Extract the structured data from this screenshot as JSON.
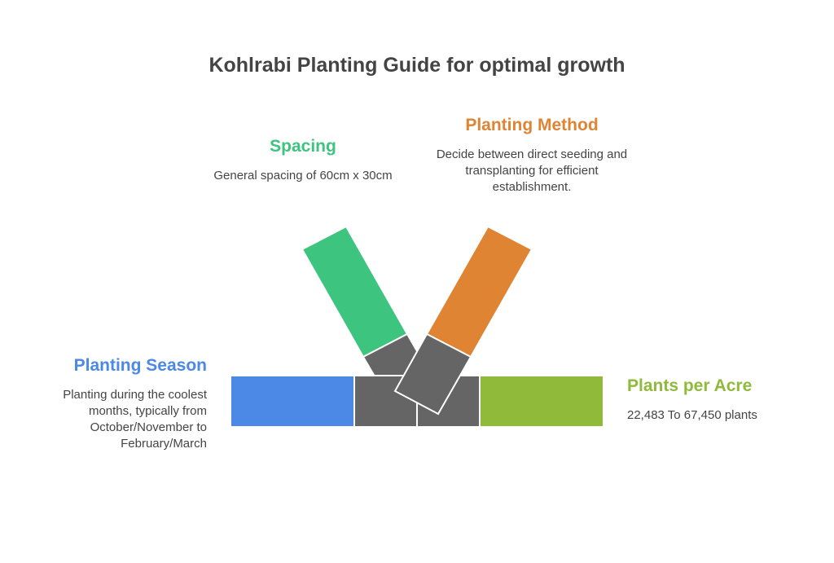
{
  "title": "Kohlrabi Planting Guide for optimal growth",
  "colors": {
    "spacing": "#3dc47e",
    "method": "#de8432",
    "season": "#4c88e5",
    "acre": "#8fba3a",
    "connector": "#656565"
  },
  "items": {
    "spacing": {
      "title": "Spacing",
      "description": "General spacing of 60cm x 30cm"
    },
    "method": {
      "title": "Planting Method",
      "description": "Decide between direct seeding and transplanting for efficient establishment."
    },
    "season": {
      "title": "Planting Season",
      "description": "Planting during the coolest months, typically from October/November to February/March"
    },
    "acre": {
      "title": "Plants per Acre",
      "description": "22,483 To 67,450 plants"
    }
  }
}
